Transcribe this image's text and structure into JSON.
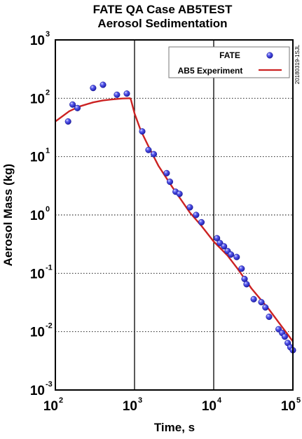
{
  "chart_data": {
    "type": "scatter",
    "title": "FATE QA Case AB5TEST",
    "subtitle": "Aerosol Sedimentation",
    "xlabel": "Time, s",
    "ylabel": "Aerosol Mass (kg)",
    "xscale": "log",
    "yscale": "log",
    "xlim": [
      100,
      100000
    ],
    "ylim": [
      0.001,
      1000
    ],
    "grid": "dashed horizontal at each decade; solid vertical at each decade",
    "legend_position": "top-right",
    "x_ticks": [
      {
        "base": "10",
        "exp": "2"
      },
      {
        "base": "10",
        "exp": "3"
      },
      {
        "base": "10",
        "exp": "4"
      },
      {
        "base": "10",
        "exp": "5"
      }
    ],
    "y_ticks": [
      {
        "base": "10",
        "exp": "-3"
      },
      {
        "base": "10",
        "exp": "-2"
      },
      {
        "base": "10",
        "exp": "-1"
      },
      {
        "base": "10",
        "exp": "0"
      },
      {
        "base": "10",
        "exp": "1"
      },
      {
        "base": "10",
        "exp": "2"
      },
      {
        "base": "10",
        "exp": "3"
      }
    ],
    "series": [
      {
        "name": "FATE",
        "marker": "circle",
        "color": "#3333ee",
        "points": [
          [
            145,
            40
          ],
          [
            165,
            78
          ],
          [
            190,
            68
          ],
          [
            300,
            150
          ],
          [
            400,
            170
          ],
          [
            600,
            115
          ],
          [
            800,
            120
          ],
          [
            1250,
            27
          ],
          [
            1500,
            13
          ],
          [
            1750,
            11
          ],
          [
            2550,
            5.2
          ],
          [
            2800,
            3.7
          ],
          [
            3300,
            2.5
          ],
          [
            3700,
            2.3
          ],
          [
            5000,
            1.35
          ],
          [
            6000,
            1.0
          ],
          [
            7000,
            0.75
          ],
          [
            11000,
            0.4
          ],
          [
            12000,
            0.33
          ],
          [
            13500,
            0.29
          ],
          [
            15000,
            0.24
          ],
          [
            16500,
            0.21
          ],
          [
            19500,
            0.19
          ],
          [
            22500,
            0.12
          ],
          [
            24500,
            0.08
          ],
          [
            26000,
            0.065
          ],
          [
            32000,
            0.036
          ],
          [
            40000,
            0.032
          ],
          [
            45000,
            0.026
          ],
          [
            50000,
            0.018
          ],
          [
            66000,
            0.011
          ],
          [
            73000,
            0.0095
          ],
          [
            79000,
            0.0082
          ],
          [
            86000,
            0.0064
          ],
          [
            93000,
            0.0054
          ],
          [
            100000,
            0.0048
          ]
        ]
      },
      {
        "name": "AB5 Experiment",
        "line": "solid",
        "color": "#cc2222",
        "points": [
          [
            100,
            40
          ],
          [
            150,
            60
          ],
          [
            200,
            72
          ],
          [
            300,
            85
          ],
          [
            400,
            92
          ],
          [
            500,
            95
          ],
          [
            700,
            99
          ],
          [
            880,
            100
          ],
          [
            900,
            95
          ],
          [
            1000,
            55
          ],
          [
            1200,
            28
          ],
          [
            1500,
            15
          ],
          [
            2000,
            7
          ],
          [
            3000,
            3
          ],
          [
            5000,
            1.1
          ],
          [
            7000,
            0.65
          ],
          [
            10000,
            0.35
          ],
          [
            15000,
            0.2
          ],
          [
            20000,
            0.12
          ],
          [
            30000,
            0.055
          ],
          [
            50000,
            0.024
          ],
          [
            70000,
            0.013
          ],
          [
            100000,
            0.0068
          ]
        ]
      }
    ]
  },
  "stamp": "20180319-1SJL"
}
